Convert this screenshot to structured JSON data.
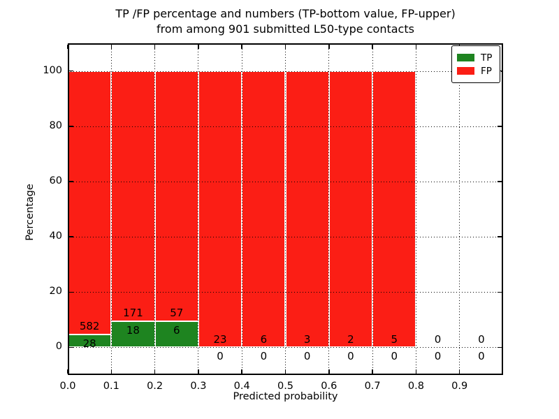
{
  "chart_data": {
    "type": "bar",
    "stacked_percentage": true,
    "title_line1": "TP /FP percentage and numbers (TP-bottom value, FP-upper)",
    "title_line2": "from among 901 submitted L50-type contacts",
    "xlabel": "Predicted probability",
    "ylabel": "Percentage",
    "total_submitted": 901,
    "bin_width": 0.1,
    "bin_starts": [
      0.0,
      0.1,
      0.2,
      0.3,
      0.4,
      0.5,
      0.6,
      0.7,
      0.8,
      0.9
    ],
    "series": [
      {
        "name": "TP",
        "color": "#1e8420",
        "counts": [
          28,
          18,
          6,
          0,
          0,
          0,
          0,
          0,
          0,
          0
        ]
      },
      {
        "name": "FP",
        "color": "#fb1e15",
        "counts": [
          582,
          171,
          57,
          23,
          6,
          3,
          2,
          5,
          0,
          0
        ]
      }
    ],
    "bar_heights_note": "each bin is stacked to 100% (TP% bottom in green, FP% top in red); bins with zero total draw no bar; counts are annotated (TP below axis when 0, FP just above TP segment)",
    "xticks": [
      "0.0",
      "0.1",
      "0.2",
      "0.3",
      "0.4",
      "0.5",
      "0.6",
      "0.7",
      "0.8",
      "0.9"
    ],
    "yticks": [
      "0",
      "20",
      "40",
      "60",
      "80",
      "100"
    ],
    "xlim": [
      0.0,
      1.0
    ],
    "ylim": [
      -10,
      110
    ],
    "grid": "dotted, both axes, drawn above bars",
    "legend_position": "upper right"
  }
}
